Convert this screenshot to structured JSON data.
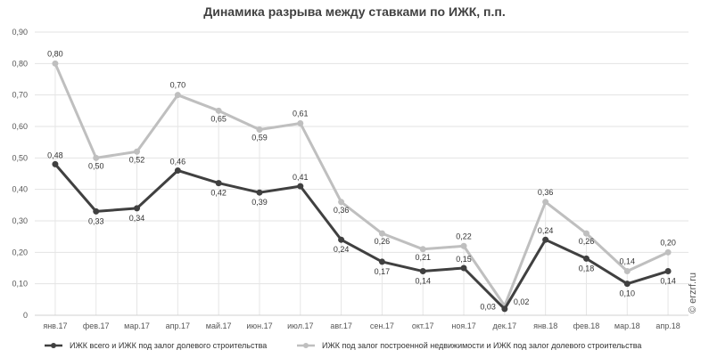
{
  "chart_data": {
    "type": "line",
    "title": "Динамика разрыва между ставками по ИЖК, п.п.",
    "categories": [
      "янв.17",
      "фев.17",
      "мар.17",
      "апр.17",
      "май.17",
      "июн.17",
      "июл.17",
      "авг.17",
      "сен.17",
      "окт.17",
      "ноя.17",
      "дек.17",
      "янв.18",
      "фев.18",
      "мар.18",
      "апр.18"
    ],
    "ylim": [
      0,
      0.9
    ],
    "yticks": [
      "0",
      "0,10",
      "0,20",
      "0,30",
      "0,40",
      "0,50",
      "0,60",
      "0,70",
      "0,80",
      "0,90"
    ],
    "grid": true,
    "legend_position": "bottom",
    "series": [
      {
        "name": "ИЖК всего и ИЖК под залог долевого строительства",
        "color": "#404040",
        "values": [
          0.48,
          0.33,
          0.34,
          0.46,
          0.42,
          0.39,
          0.41,
          0.24,
          0.17,
          0.14,
          0.15,
          0.02,
          0.24,
          0.18,
          0.1,
          0.14
        ],
        "labels": [
          "0,48",
          "0,33",
          "0,34",
          "0,46",
          "0,42",
          "0,39",
          "0,41",
          "0,24",
          "0,17",
          "0,14",
          "0,15",
          "0,02",
          "0,24",
          "0,18",
          "0,10",
          "0,14"
        ]
      },
      {
        "name": "ИЖК под залог построенной недвижимости и ИЖК под залог долевого строительства",
        "color": "#bfbfbf",
        "values": [
          0.8,
          0.5,
          0.52,
          0.7,
          0.65,
          0.59,
          0.61,
          0.36,
          0.26,
          0.21,
          0.22,
          0.03,
          0.36,
          0.26,
          0.14,
          0.2
        ],
        "labels": [
          "0,80",
          "0,50",
          "0,52",
          "0,70",
          "0,65",
          "0,59",
          "0,61",
          "0,36",
          "0,26",
          "0,21",
          "0,22",
          "0,03",
          "0,36",
          "0,26",
          "0,14",
          "0,20"
        ]
      }
    ]
  },
  "watermark": "© erzrf.ru"
}
